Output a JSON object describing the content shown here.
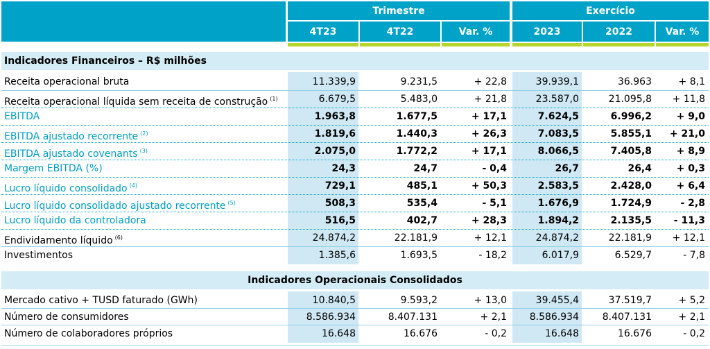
{
  "header": {
    "group_trimestre": "Trimestre",
    "group_exercicio": "Exercício",
    "columns": [
      "4T23",
      "4T22",
      "Var. %",
      "2023",
      "2022",
      "Var. %"
    ]
  },
  "sections": {
    "financeiros": "Indicadores Financeiros – R$ milhões",
    "operacionais": "Indicadores Operacionais Consolidados"
  },
  "financial_rows": [
    {
      "label": "Receita operacional bruta",
      "note": "",
      "values": [
        "11.339,9",
        "9.231,5",
        "+ 22,8",
        "39.939,1",
        "36.963",
        "+ 8,1"
      ]
    },
    {
      "label": "Receita operacional líquida sem receita de construção",
      "note": "(1)",
      "values": [
        "6.679,5",
        "5.483,0",
        "+ 21,8",
        "23.587,0",
        "21.095,8",
        "+ 11,8"
      ]
    },
    {
      "label": "EBITDA",
      "note": "",
      "values": [
        "1.963,8",
        "1.677,5",
        "+ 17,1",
        "7.624,5",
        "6.996,2",
        "+ 9,0"
      ]
    },
    {
      "label": "EBITDA ajustado recorrente",
      "note": "(2)",
      "values": [
        "1.819,6",
        "1.440,3",
        "+ 26,3",
        "7.083,5",
        "5.855,1",
        "+ 21,0"
      ]
    },
    {
      "label": "EBITDA ajustado covenants",
      "note": "(3)",
      "values": [
        "2.075,0",
        "1.772,2",
        "+ 17,1",
        "8.066,5",
        "7.405,8",
        "+ 8,9"
      ]
    },
    {
      "label": "Margem EBITDA (%)",
      "note": "",
      "values": [
        "24,3",
        "24,7",
        "- 0,4",
        "26,7",
        "26,4",
        "+ 0,3"
      ]
    },
    {
      "label": "Lucro líquido consolidado",
      "note": "(4)",
      "values": [
        "729,1",
        "485,1",
        "+ 50,3",
        "2.583,5",
        "2.428,0",
        "+ 6,4"
      ]
    },
    {
      "label": "Lucro líquido consolidado ajustado recorrente",
      "note": "(5)",
      "values": [
        "508,3",
        "535,4",
        "- 5,1",
        "1.676,9",
        "1.724,9",
        "- 2,8"
      ]
    },
    {
      "label": "Lucro líquido da controladora",
      "note": "",
      "values": [
        "516,5",
        "402,7",
        "+ 28,3",
        "1.894,2",
        "2.135,5",
        "- 11,3"
      ]
    },
    {
      "label": "Endividamento líquido",
      "note": "(6)",
      "values": [
        "24.874,2",
        "22.181,9",
        "+ 12,1",
        "24.874,2",
        "22.181,9",
        "+ 12,1"
      ]
    },
    {
      "label": "Investimentos",
      "note": "",
      "values": [
        "1.385,6",
        "1.693,5",
        "- 18,2",
        "6.017,9",
        "6.529,7",
        "- 7,8"
      ]
    }
  ],
  "operational_rows": [
    {
      "label": "Mercado cativo + TUSD faturado (GWh)",
      "note": "",
      "values": [
        "10.840,5",
        "9.593,2",
        "+ 13,0",
        "39.455,4",
        "37.519,7",
        "+ 5,2"
      ]
    },
    {
      "label": "Número de consumidores",
      "note": "",
      "values": [
        "8.586.934",
        "8.407.131",
        "+ 2,1",
        "8.586.934",
        "8.407.131",
        "+ 2,1"
      ]
    },
    {
      "label": "Número de colaboradores próprios",
      "note": "",
      "values": [
        "16.648",
        "16.676",
        "- 0,2",
        "16.648",
        "16.676",
        "- 0,2"
      ]
    }
  ],
  "colors": {
    "header_bg": "#00a3c7",
    "accent_green": "#b5d52e",
    "section_bg": "#d4ecf5",
    "column_shade": "#cfe8f4",
    "highlight_text": "#009dc4"
  }
}
